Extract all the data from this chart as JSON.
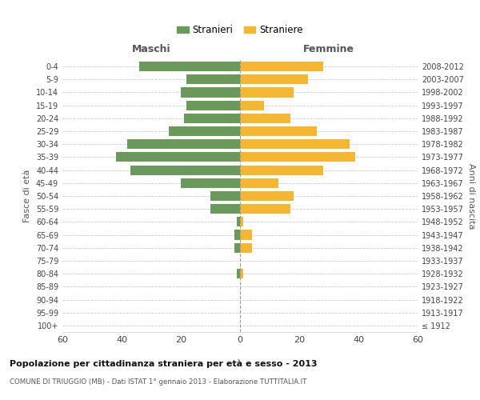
{
  "age_groups": [
    "100+",
    "95-99",
    "90-94",
    "85-89",
    "80-84",
    "75-79",
    "70-74",
    "65-69",
    "60-64",
    "55-59",
    "50-54",
    "45-49",
    "40-44",
    "35-39",
    "30-34",
    "25-29",
    "20-24",
    "15-19",
    "10-14",
    "5-9",
    "0-4"
  ],
  "birth_years": [
    "≤ 1912",
    "1913-1917",
    "1918-1922",
    "1923-1927",
    "1928-1932",
    "1933-1937",
    "1938-1942",
    "1943-1947",
    "1948-1952",
    "1953-1957",
    "1958-1962",
    "1963-1967",
    "1968-1972",
    "1973-1977",
    "1978-1982",
    "1983-1987",
    "1988-1992",
    "1993-1997",
    "1998-2002",
    "2003-2007",
    "2008-2012"
  ],
  "males": [
    0,
    0,
    0,
    0,
    1,
    0,
    2,
    2,
    1,
    10,
    10,
    20,
    37,
    42,
    38,
    24,
    19,
    18,
    20,
    18,
    34
  ],
  "females": [
    0,
    0,
    0,
    0,
    1,
    0,
    4,
    4,
    1,
    17,
    18,
    13,
    28,
    39,
    37,
    26,
    17,
    8,
    18,
    23,
    28
  ],
  "male_color": "#6a9a5b",
  "female_color": "#f5b731",
  "title": "Popolazione per cittadinanza straniera per età e sesso - 2013",
  "subtitle": "COMUNE DI TRIUGGIO (MB) - Dati ISTAT 1° gennaio 2013 - Elaborazione TUTTITALIA.IT",
  "ylabel_left": "Fasce di età",
  "ylabel_right": "Anni di nascita",
  "legend_male": "Stranieri",
  "legend_female": "Straniere",
  "xlim": 60,
  "background_color": "#ffffff",
  "grid_color": "#cccccc"
}
